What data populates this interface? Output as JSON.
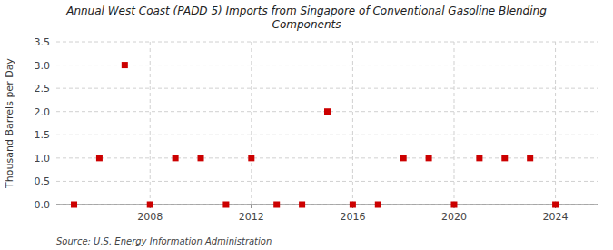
{
  "chart_data": {
    "type": "scatter",
    "title": "Annual West Coast (PADD 5) Imports from Singapore of Conventional Gasoline Blending\nComponents",
    "y_label": "Thousand Barrels per Day",
    "source": "Source: U.S. Energy Information Administration",
    "x": [
      2005,
      2006,
      2007,
      2008,
      2009,
      2010,
      2011,
      2012,
      2013,
      2014,
      2015,
      2016,
      2017,
      2018,
      2019,
      2020,
      2021,
      2022,
      2023,
      2024
    ],
    "values": [
      0.0,
      1.0,
      3.0,
      0.0,
      1.0,
      1.0,
      0.0,
      1.0,
      0.0,
      0.0,
      2.0,
      0.0,
      0.0,
      1.0,
      1.0,
      0.0,
      1.0,
      1.0,
      1.0,
      0.0
    ],
    "color": "#cc0000",
    "marker": "square",
    "xlim": [
      2004.3,
      2025.7
    ],
    "xticks": [
      2008,
      2012,
      2016,
      2020,
      2024
    ],
    "ylim": [
      0,
      3.5
    ],
    "yticks": [
      {
        "value": 0.0,
        "label": "0.0"
      },
      {
        "value": 0.5,
        "label": "0.5"
      },
      {
        "value": 1.0,
        "label": "1.0"
      },
      {
        "value": 1.5,
        "label": "1.5"
      },
      {
        "value": 2.0,
        "label": "2.0"
      },
      {
        "value": 2.5,
        "label": "2.5"
      },
      {
        "value": 3.0,
        "label": "3.0"
      },
      {
        "value": 3.5,
        "label": "3.5"
      }
    ],
    "grid": true
  }
}
